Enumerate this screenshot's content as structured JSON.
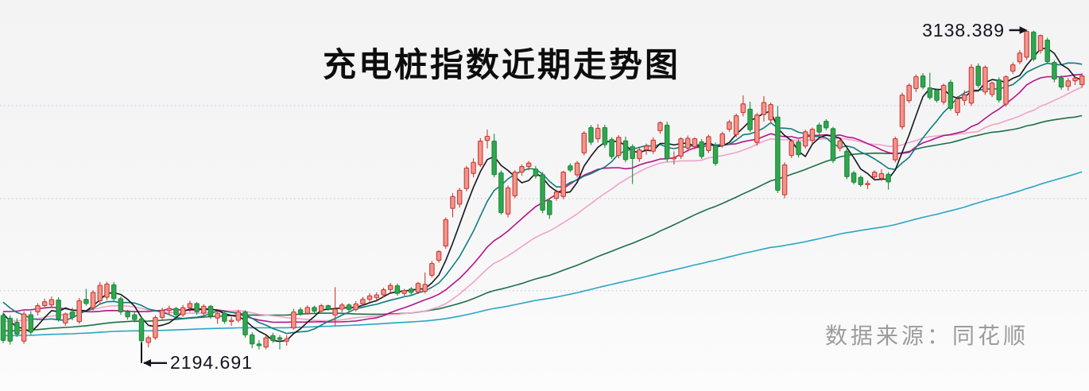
{
  "page": {
    "background": "#f5f5f6"
  },
  "title": {
    "text": "充电桩指数近期走势图"
  },
  "source": {
    "text": "数据来源：同花顺"
  },
  "chart_data": {
    "type": "candlestick",
    "title": "充电桩指数近期走势图",
    "source_label": "数据来源：同花顺",
    "ylim": [
      2103,
      3225
    ],
    "grid": "horizontal-dotted",
    "gridline_prices": [
      2922,
      2655,
      2391
    ],
    "legend_position": "none",
    "annotations": {
      "high": {
        "label": "3138.389",
        "value": 3138.389,
        "candle_index": 148
      },
      "low": {
        "label": "2194.691",
        "value": 2194.691,
        "candle_index": 20
      }
    },
    "colors": {
      "up_fill": "#f0958d",
      "up_stroke": "#cc3b33",
      "down_fill": "#31a64f",
      "down_stroke": "#1e8a3c",
      "grid": "#c6c6c6",
      "annotation": "#15151f",
      "title": "#0d0d0d",
      "source_text": "#9c9c9c"
    },
    "ma_lines": [
      {
        "name": "MA5",
        "window": 5,
        "color": "#17171f"
      },
      {
        "name": "MA10",
        "window": 10,
        "color": "#0e7d7d"
      },
      {
        "name": "MA20",
        "window": 20,
        "color": "#b5148c"
      },
      {
        "name": "MA30",
        "window": 30,
        "color": "#f0a3c9"
      },
      {
        "name": "MA60",
        "window": 60,
        "color": "#1d6f47"
      },
      {
        "name": "MA120",
        "window": 120,
        "color": "#2aa5c4"
      }
    ],
    "candles": [
      [
        2320,
        2328,
        2240,
        2248
      ],
      [
        2312,
        2320,
        2236,
        2246
      ],
      [
        2300,
        2312,
        2258,
        2266
      ],
      [
        2246,
        2332,
        2238,
        2324
      ],
      [
        2322,
        2332,
        2264,
        2272
      ],
      [
        2330,
        2355,
        2320,
        2348
      ],
      [
        2348,
        2368,
        2340,
        2359
      ],
      [
        2350,
        2374,
        2344,
        2365
      ],
      [
        2364,
        2372,
        2302,
        2310
      ],
      [
        2298,
        2328,
        2290,
        2324
      ],
      [
        2330,
        2342,
        2306,
        2314
      ],
      [
        2302,
        2370,
        2296,
        2362
      ],
      [
        2366,
        2396,
        2348,
        2354
      ],
      [
        2342,
        2392,
        2334,
        2386
      ],
      [
        2362,
        2416,
        2350,
        2406
      ],
      [
        2372,
        2416,
        2364,
        2410
      ],
      [
        2408,
        2416,
        2360,
        2368
      ],
      [
        2368,
        2374,
        2322,
        2330
      ],
      [
        2330,
        2336,
        2308,
        2316
      ],
      [
        2322,
        2330,
        2300,
        2308
      ],
      [
        2310,
        2316,
        2194.691,
        2247
      ],
      [
        2242,
        2262,
        2228,
        2256
      ],
      [
        2256,
        2320,
        2250,
        2314
      ],
      [
        2314,
        2342,
        2304,
        2334
      ],
      [
        2334,
        2348,
        2320,
        2340
      ],
      [
        2340,
        2344,
        2314,
        2322
      ],
      [
        2322,
        2350,
        2316,
        2342
      ],
      [
        2342,
        2362,
        2330,
        2354
      ],
      [
        2354,
        2358,
        2322,
        2330
      ],
      [
        2326,
        2352,
        2318,
        2346
      ],
      [
        2346,
        2350,
        2310,
        2318
      ],
      [
        2312,
        2334,
        2296,
        2326
      ],
      [
        2326,
        2332,
        2296,
        2303
      ],
      [
        2303,
        2316,
        2290,
        2306
      ],
      [
        2306,
        2336,
        2300,
        2330
      ],
      [
        2330,
        2335,
        2256,
        2264
      ],
      [
        2264,
        2271,
        2226,
        2238
      ],
      [
        2238,
        2249,
        2222,
        2233
      ],
      [
        2229,
        2263,
        2223,
        2256
      ],
      [
        2262,
        2270,
        2241,
        2248
      ],
      [
        2256,
        2263,
        2222,
        2251
      ],
      [
        2246,
        2263,
        2233,
        2253
      ],
      [
        2284,
        2339,
        2279,
        2330
      ],
      [
        2336,
        2343,
        2319,
        2326
      ],
      [
        2326,
        2349,
        2321,
        2343
      ],
      [
        2343,
        2348,
        2326,
        2332
      ],
      [
        2332,
        2353,
        2327,
        2348
      ],
      [
        2348,
        2351,
        2333,
        2338
      ],
      [
        2321,
        2401,
        2291,
        2338
      ],
      [
        2338,
        2356,
        2329,
        2350
      ],
      [
        2350,
        2354,
        2331,
        2337
      ],
      [
        2337,
        2361,
        2331,
        2353
      ],
      [
        2353,
        2373,
        2346,
        2366
      ],
      [
        2366,
        2383,
        2359,
        2376
      ],
      [
        2371,
        2386,
        2363,
        2379
      ],
      [
        2379,
        2399,
        2371,
        2394
      ],
      [
        2394,
        2413,
        2386,
        2406
      ],
      [
        2405,
        2411,
        2377,
        2383
      ],
      [
        2383,
        2396,
        2376,
        2391
      ],
      [
        2396,
        2401,
        2379,
        2386
      ],
      [
        2387,
        2416,
        2381,
        2412
      ],
      [
        2389,
        2443,
        2383,
        2409
      ],
      [
        2435,
        2476,
        2429,
        2469
      ],
      [
        2478,
        2507,
        2471,
        2503
      ],
      [
        2519,
        2601,
        2511,
        2595
      ],
      [
        2627,
        2671,
        2601,
        2661
      ],
      [
        2639,
        2686,
        2629,
        2679
      ],
      [
        2684,
        2749,
        2676,
        2743
      ],
      [
        2727,
        2771,
        2716,
        2759
      ],
      [
        2752,
        2829,
        2746,
        2820
      ],
      [
        2822,
        2853,
        2799,
        2834
      ],
      [
        2820,
        2841,
        2716,
        2724
      ],
      [
        2729,
        2736,
        2609,
        2615
      ],
      [
        2611,
        2693,
        2601,
        2686
      ],
      [
        2663,
        2737,
        2656,
        2731
      ],
      [
        2731,
        2753,
        2721,
        2747
      ],
      [
        2747,
        2763,
        2736,
        2757
      ],
      [
        2740,
        2749,
        2713,
        2720
      ],
      [
        2724,
        2731,
        2613,
        2622
      ],
      [
        2649,
        2656,
        2597,
        2609
      ],
      [
        2656,
        2681,
        2649,
        2674
      ],
      [
        2661,
        2735,
        2653,
        2731
      ],
      [
        2749,
        2756,
        2731,
        2737
      ],
      [
        2723,
        2763,
        2716,
        2757
      ],
      [
        2786,
        2849,
        2779,
        2843
      ],
      [
        2859,
        2866,
        2809,
        2817
      ],
      [
        2827,
        2869,
        2816,
        2857
      ],
      [
        2859,
        2867,
        2801,
        2810
      ],
      [
        2825,
        2831,
        2769,
        2776
      ],
      [
        2779,
        2837,
        2771,
        2831
      ],
      [
        2821,
        2833,
        2759,
        2767
      ],
      [
        2804,
        2811,
        2697,
        2770
      ],
      [
        2770,
        2801,
        2761,
        2795
      ],
      [
        2795,
        2813,
        2781,
        2806
      ],
      [
        2791,
        2831,
        2783,
        2823
      ],
      [
        2850,
        2877,
        2841,
        2873
      ],
      [
        2866,
        2876,
        2761,
        2770
      ],
      [
        2770,
        2791,
        2753,
        2773
      ],
      [
        2777,
        2831,
        2769,
        2827
      ],
      [
        2800,
        2836,
        2790,
        2828
      ],
      [
        2804,
        2831,
        2797,
        2827
      ],
      [
        2818,
        2826,
        2769,
        2776
      ],
      [
        2793,
        2839,
        2786,
        2833
      ],
      [
        2807,
        2816,
        2749,
        2756
      ],
      [
        2807,
        2847,
        2801,
        2841
      ],
      [
        2854,
        2881,
        2847,
        2875
      ],
      [
        2839,
        2899,
        2831,
        2893
      ],
      [
        2902,
        2951,
        2891,
        2927
      ],
      [
        2912,
        2933,
        2846,
        2853
      ],
      [
        2816,
        2901,
        2807,
        2895
      ],
      [
        2896,
        2949,
        2876,
        2931
      ],
      [
        2881,
        2931,
        2871,
        2925
      ],
      [
        2889,
        2921,
        2671,
        2679
      ],
      [
        2666,
        2759,
        2656,
        2752
      ],
      [
        2779,
        2826,
        2771,
        2820
      ],
      [
        2818,
        2825,
        2773,
        2781
      ],
      [
        2806,
        2853,
        2799,
        2847
      ],
      [
        2822,
        2859,
        2813,
        2854
      ],
      [
        2866,
        2873,
        2839,
        2846
      ],
      [
        2877,
        2883,
        2851,
        2858
      ],
      [
        2856,
        2861,
        2757,
        2764
      ],
      [
        2800,
        2827,
        2791,
        2821
      ],
      [
        2791,
        2799,
        2711,
        2718
      ],
      [
        2729,
        2735,
        2696,
        2702
      ],
      [
        2716,
        2721,
        2689,
        2695
      ],
      [
        2695,
        2707,
        2683,
        2699
      ],
      [
        2717,
        2736,
        2709,
        2731
      ],
      [
        2713,
        2739,
        2706,
        2727
      ],
      [
        2725,
        2731,
        2681,
        2703
      ],
      [
        2766,
        2833,
        2759,
        2827
      ],
      [
        2861,
        2959,
        2853,
        2952
      ],
      [
        2936,
        2986,
        2929,
        2980
      ],
      [
        2971,
        3011,
        2961,
        3005
      ],
      [
        3007,
        3015,
        2969,
        2975
      ],
      [
        2973,
        3016,
        2939,
        2945
      ],
      [
        2966,
        2971,
        2931,
        2937
      ],
      [
        2932,
        2985,
        2925,
        2980
      ],
      [
        2989,
        2996,
        2907,
        2914
      ],
      [
        2902,
        2949,
        2893,
        2941
      ],
      [
        2937,
        2966,
        2923,
        2953
      ],
      [
        2929,
        3041,
        2921,
        3032
      ],
      [
        3035,
        3043,
        2973,
        2980
      ],
      [
        2961,
        3037,
        2953,
        3032
      ],
      [
        2954,
        2991,
        2946,
        2987
      ],
      [
        2996,
        3003,
        2931,
        2938
      ],
      [
        2926,
        3009,
        2919,
        3005
      ],
      [
        3021,
        3046,
        3013,
        3039
      ],
      [
        3048,
        3081,
        3041,
        3073
      ],
      [
        3061,
        3138.389,
        3053,
        3135
      ],
      [
        3133,
        3137,
        3049,
        3055
      ],
      [
        3080,
        3126,
        3071,
        3123
      ],
      [
        3110,
        3117,
        3041,
        3048
      ],
      [
        3046,
        3051,
        2989,
        2998
      ],
      [
        3001,
        3009,
        2967,
        2975
      ],
      [
        2977,
        3001,
        2965,
        2993
      ],
      [
        2993,
        3007,
        2981,
        3001
      ],
      [
        2982,
        3015,
        2973,
        3007
      ]
    ]
  }
}
